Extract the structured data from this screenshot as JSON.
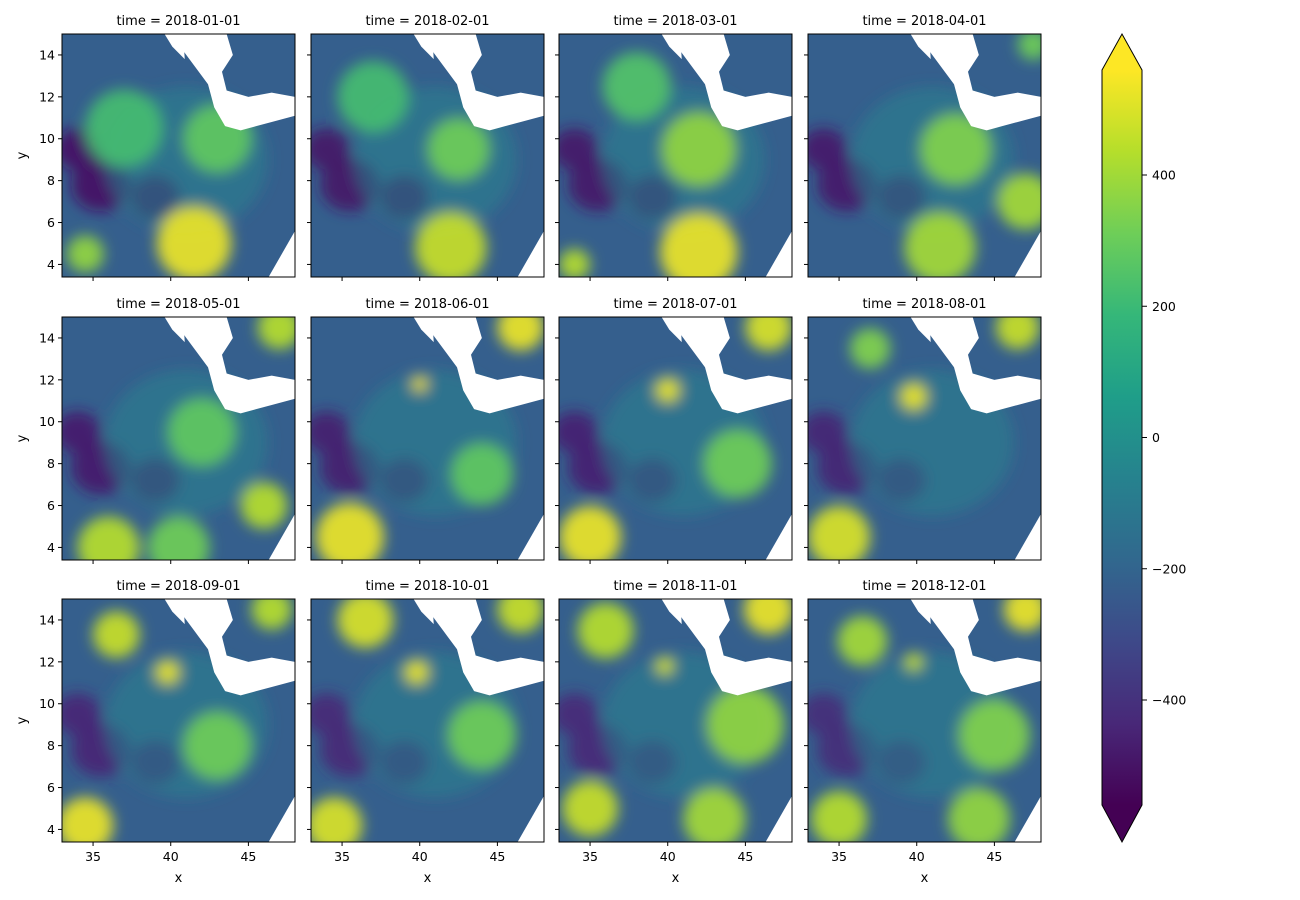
{
  "chart_data": {
    "type": "heatmap",
    "layout": {
      "rows": 3,
      "cols": 4
    },
    "panel_titles": [
      "time = 2018-01-01",
      "time = 2018-02-01",
      "time = 2018-03-01",
      "time = 2018-04-01",
      "time = 2018-05-01",
      "time = 2018-06-01",
      "time = 2018-07-01",
      "time = 2018-08-01",
      "time = 2018-09-01",
      "time = 2018-10-01",
      "time = 2018-11-01",
      "time = 2018-12-01"
    ],
    "xlabel": "x",
    "ylabel": "y",
    "xlim": [
      33,
      48
    ],
    "ylim": [
      3.4,
      15
    ],
    "xticks": [
      35,
      40,
      45
    ],
    "yticks": [
      4,
      6,
      8,
      10,
      12,
      14
    ],
    "colorbar": {
      "colormap": "viridis",
      "range": [
        -560,
        560
      ],
      "ticks": [
        400,
        200,
        0,
        -200,
        -400
      ],
      "tick_labels": [
        "400",
        "200",
        "0",
        "−200",
        "−400"
      ],
      "extend": "both"
    },
    "viridis_stops": [
      "#440154",
      "#482878",
      "#3e4989",
      "#31688e",
      "#26828e",
      "#1f9e89",
      "#35b779",
      "#6ece58",
      "#b5de2b",
      "#fde725"
    ],
    "ocean_color": "#ffffff"
  }
}
